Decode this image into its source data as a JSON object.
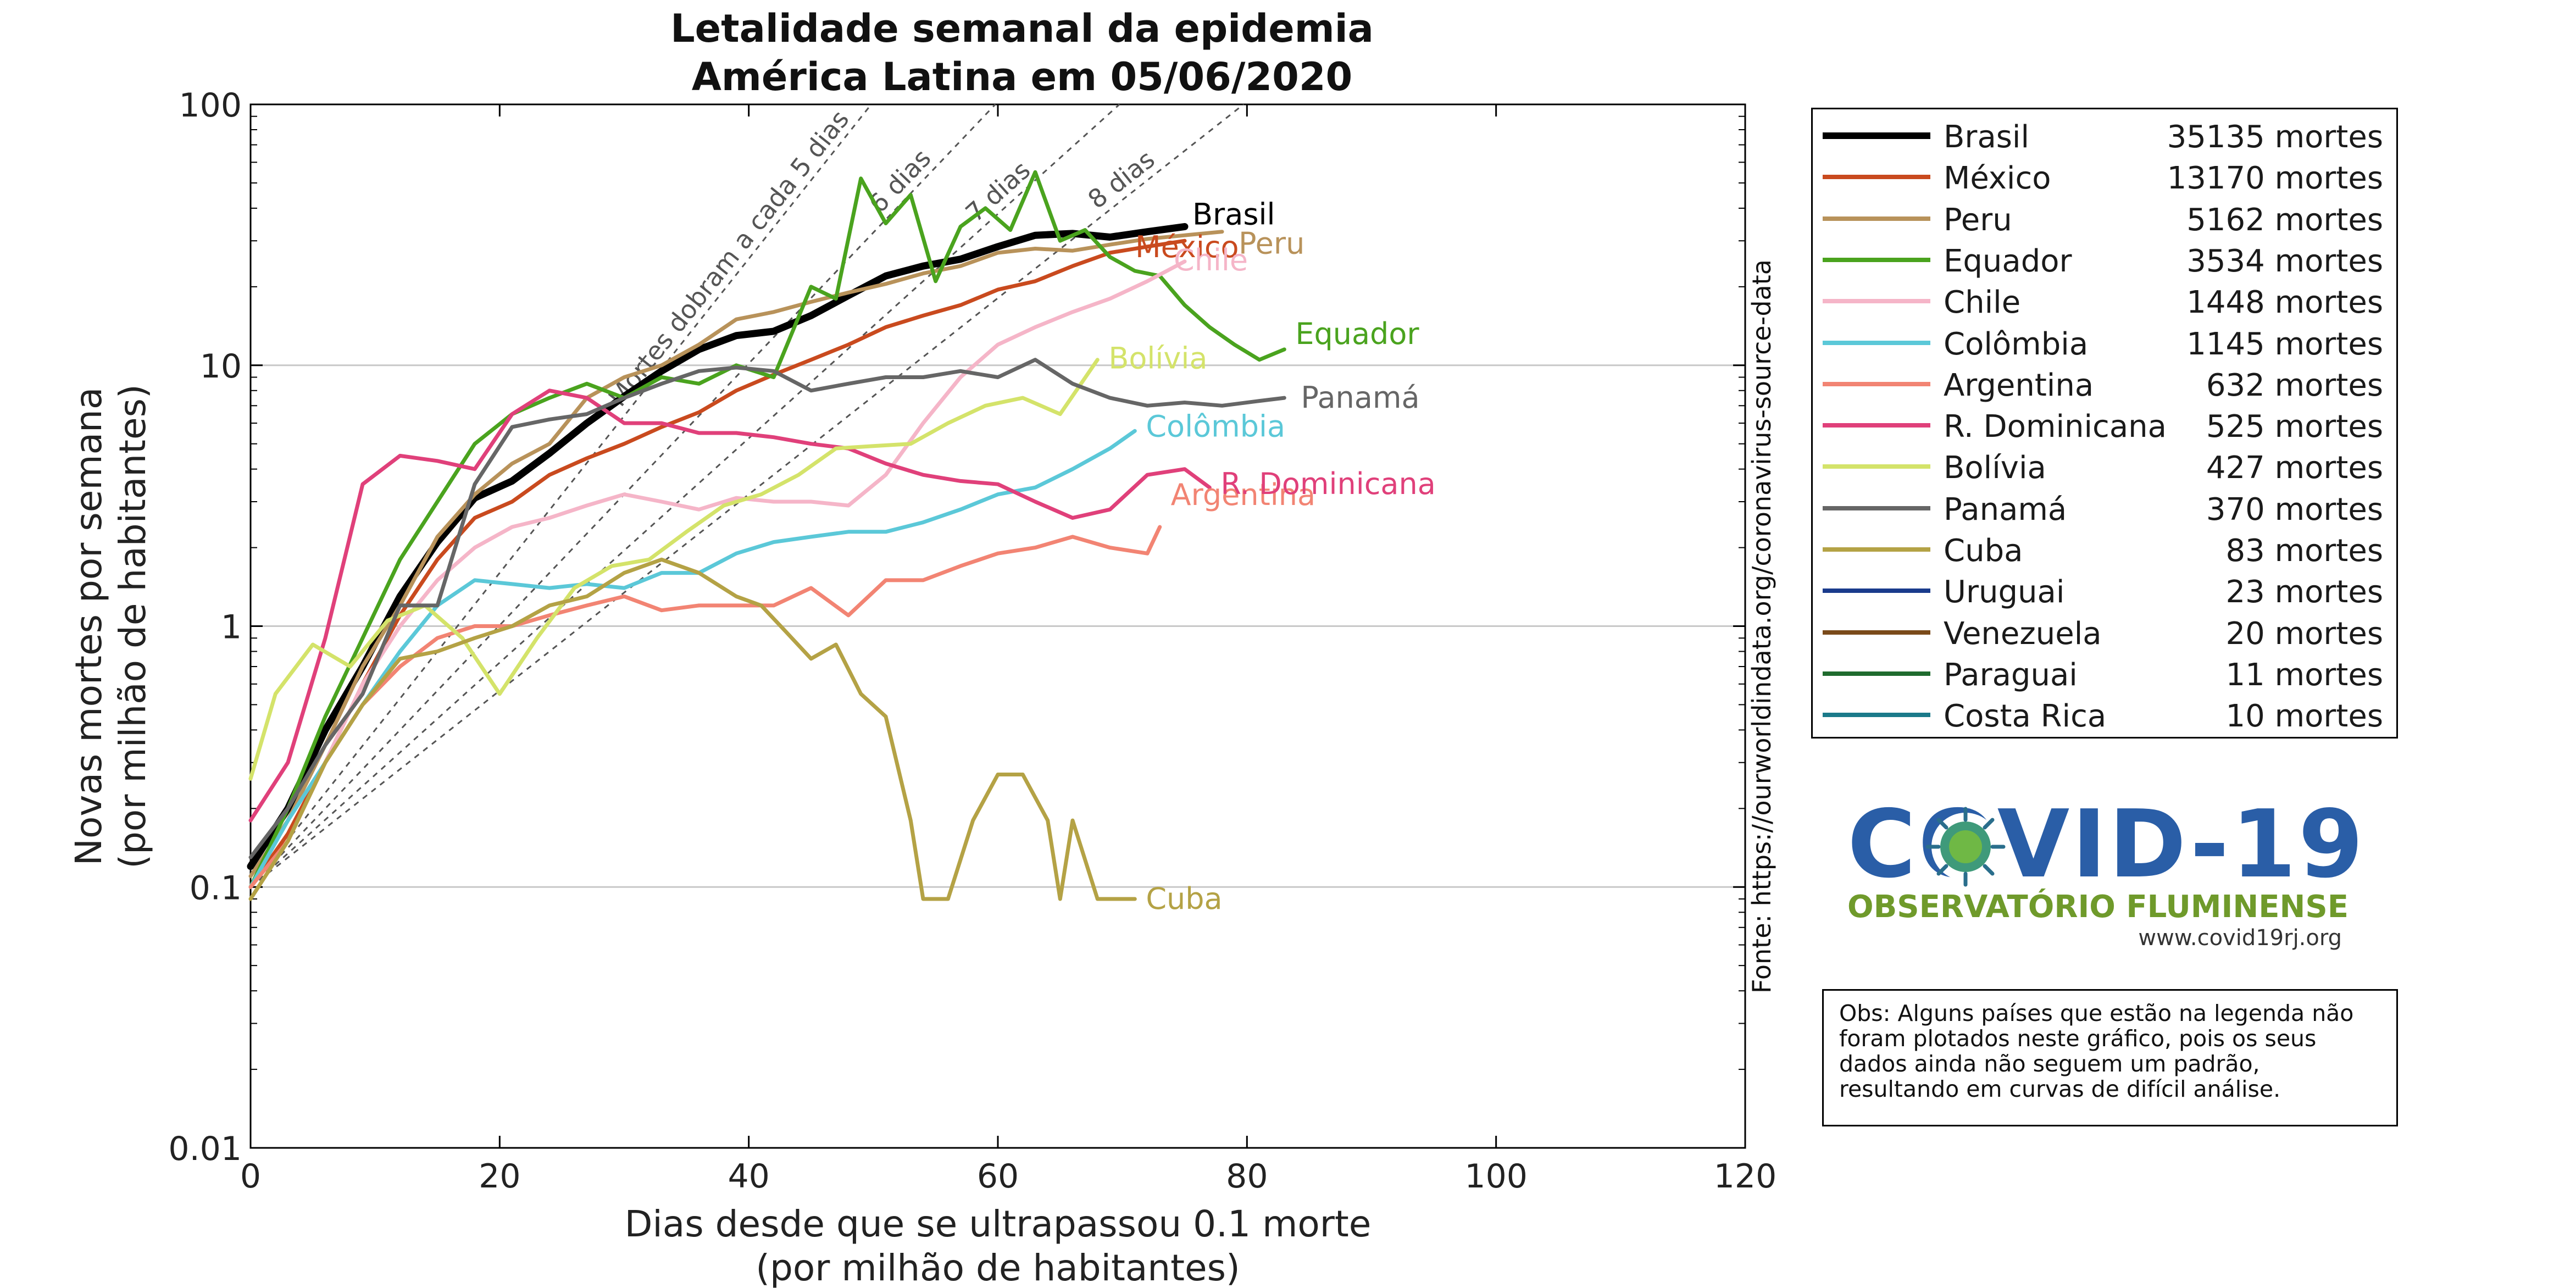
{
  "chart_data": {
    "type": "line",
    "title_line1": "Letalidade semanal da epidemia",
    "title_line2": "América Latina em 05/06/2020",
    "xlabel_line1": "Dias desde que se ultrapassou 0.1 morte",
    "xlabel_line2": "(por milhão de habitantes)",
    "ylabel_line1": "Novas mortes por semana",
    "ylabel_line2": "(por milhão de habitantes)",
    "source": "Fonte: https://ourworldindata.org/coronavirus-source-data",
    "xlim": [
      0,
      120
    ],
    "ylim": [
      0.01,
      100
    ],
    "yscale": "log",
    "grid": "horizontal",
    "legend_placement": "outside-right",
    "x_ticks": [
      "0",
      "20",
      "40",
      "60",
      "80",
      "100",
      "120"
    ],
    "y_ticks": [
      "0.01",
      "0.1",
      "1",
      "10",
      "100"
    ],
    "doubling_lines": [
      {
        "days": 5,
        "label": "Mortes dobram a cada 5 dias"
      },
      {
        "days": 6,
        "label": "6 dias"
      },
      {
        "days": 7,
        "label": "7 dias"
      },
      {
        "days": 8,
        "label": "8 dias"
      }
    ],
    "series": [
      {
        "name": "Brasil",
        "deaths": "35135 mortes",
        "color": "#000000",
        "end_label": "Brasil",
        "x": [
          0,
          3,
          6,
          9,
          12,
          15,
          18,
          21,
          24,
          27,
          30,
          33,
          36,
          39,
          42,
          45,
          48,
          51,
          54,
          57,
          60,
          63,
          66,
          69,
          72,
          75
        ],
        "y": [
          0.12,
          0.2,
          0.4,
          0.7,
          1.3,
          2.1,
          3.1,
          3.6,
          4.6,
          6.0,
          7.6,
          9.5,
          11.5,
          13.0,
          13.5,
          15.5,
          18.5,
          22.0,
          24.0,
          25.5,
          28.5,
          31.5,
          32.0,
          31.0,
          32.5,
          34.0
        ]
      },
      {
        "name": "México",
        "deaths": "13170 mortes",
        "color": "#c94a1e",
        "end_label": "México",
        "x": [
          0,
          3,
          6,
          9,
          12,
          15,
          18,
          21,
          24,
          27,
          30,
          33,
          36,
          39,
          42,
          45,
          48,
          51,
          54,
          57,
          60,
          63,
          66,
          69,
          72,
          75
        ],
        "y": [
          0.1,
          0.16,
          0.3,
          0.6,
          1.1,
          1.8,
          2.6,
          3.0,
          3.8,
          4.4,
          5.0,
          5.8,
          6.6,
          8.0,
          9.2,
          10.5,
          12.0,
          14.0,
          15.5,
          17.0,
          19.5,
          21.0,
          24.0,
          27.0,
          28.5,
          30.0
        ]
      },
      {
        "name": "Peru",
        "deaths": "5162 mortes",
        "color": "#b8925a",
        "end_label": "Peru",
        "x": [
          0,
          3,
          6,
          9,
          12,
          15,
          18,
          21,
          24,
          27,
          30,
          33,
          36,
          39,
          42,
          45,
          48,
          51,
          54,
          57,
          60,
          63,
          66,
          69,
          72,
          75,
          78
        ],
        "y": [
          0.11,
          0.18,
          0.35,
          0.7,
          1.2,
          2.2,
          3.2,
          4.2,
          5.0,
          7.5,
          9.0,
          10.0,
          12.0,
          15.0,
          16.0,
          17.5,
          19.0,
          20.5,
          22.5,
          24.0,
          27.0,
          28.0,
          27.5,
          29.0,
          30.5,
          31.5,
          32.5
        ]
      },
      {
        "name": "Equador",
        "deaths": "3534 mortes",
        "color": "#4aa31e",
        "end_label": "Equador",
        "x": [
          0,
          3,
          6,
          9,
          12,
          15,
          18,
          21,
          24,
          27,
          30,
          33,
          36,
          39,
          42,
          45,
          47,
          49,
          51,
          53,
          55,
          57,
          59,
          61,
          63,
          65,
          67,
          69,
          71,
          73,
          75,
          77,
          79,
          81,
          83
        ],
        "y": [
          0.1,
          0.2,
          0.45,
          0.9,
          1.8,
          3.0,
          5.0,
          6.5,
          7.5,
          8.5,
          7.5,
          9.0,
          8.5,
          10.0,
          9.0,
          20.0,
          18.0,
          52.0,
          35.0,
          45.0,
          21.0,
          34.0,
          40.0,
          33.0,
          55.0,
          30.0,
          33.0,
          26.0,
          23.0,
          22.0,
          17.0,
          14.0,
          12.0,
          10.5,
          11.5
        ]
      },
      {
        "name": "Chile",
        "deaths": "1448 mortes",
        "color": "#f5b5c8",
        "end_label": "Chile",
        "x": [
          0,
          3,
          6,
          9,
          12,
          15,
          18,
          21,
          24,
          27,
          30,
          33,
          36,
          39,
          42,
          45,
          48,
          51,
          54,
          57,
          60,
          63,
          66,
          69,
          72,
          75
        ],
        "y": [
          0.1,
          0.15,
          0.3,
          0.6,
          1.0,
          1.5,
          2.0,
          2.4,
          2.6,
          2.9,
          3.2,
          3.0,
          2.8,
          3.1,
          3.0,
          3.0,
          2.9,
          3.8,
          6.0,
          9.0,
          12.0,
          14.0,
          16.0,
          18.0,
          21.0,
          25.0
        ]
      },
      {
        "name": "Colômbia",
        "deaths": "1145 mortes",
        "color": "#5bc8d8",
        "end_label": "Colômbia",
        "x": [
          0,
          3,
          6,
          9,
          12,
          15,
          18,
          21,
          24,
          27,
          30,
          33,
          36,
          39,
          42,
          45,
          48,
          51,
          54,
          57,
          60,
          63,
          66,
          69,
          71
        ],
        "y": [
          0.1,
          0.18,
          0.3,
          0.5,
          0.8,
          1.2,
          1.5,
          1.45,
          1.4,
          1.45,
          1.4,
          1.6,
          1.6,
          1.9,
          2.1,
          2.2,
          2.3,
          2.3,
          2.5,
          2.8,
          3.2,
          3.4,
          4.0,
          4.8,
          5.6
        ]
      },
      {
        "name": "Argentina",
        "deaths": "632 mortes",
        "color": "#f28473",
        "end_label": "Argentina",
        "x": [
          0,
          3,
          6,
          9,
          12,
          15,
          18,
          21,
          24,
          27,
          30,
          33,
          36,
          39,
          42,
          45,
          48,
          51,
          54,
          57,
          60,
          63,
          66,
          69,
          72,
          73
        ],
        "y": [
          0.1,
          0.15,
          0.3,
          0.5,
          0.7,
          0.9,
          1.0,
          1.0,
          1.1,
          1.2,
          1.3,
          1.15,
          1.2,
          1.2,
          1.2,
          1.4,
          1.1,
          1.5,
          1.5,
          1.7,
          1.9,
          2.0,
          2.2,
          2.0,
          1.9,
          2.4
        ]
      },
      {
        "name": "R. Dominicana",
        "deaths": "525 mortes",
        "color": "#e0407a",
        "end_label": "R. Dominicana",
        "x": [
          0,
          3,
          6,
          9,
          12,
          15,
          18,
          21,
          24,
          27,
          30,
          33,
          36,
          39,
          42,
          45,
          48,
          51,
          54,
          57,
          60,
          63,
          66,
          69,
          72,
          75,
          77
        ],
        "y": [
          0.18,
          0.3,
          0.9,
          3.5,
          4.5,
          4.3,
          4.0,
          6.5,
          8.0,
          7.5,
          6.0,
          6.0,
          5.5,
          5.5,
          5.3,
          5.0,
          4.8,
          4.2,
          3.8,
          3.6,
          3.5,
          3.0,
          2.6,
          2.8,
          3.8,
          4.0,
          3.4
        ]
      },
      {
        "name": "Bolívia",
        "deaths": "427 mortes",
        "color": "#d4e36a",
        "end_label": "Bolívia",
        "x": [
          0,
          2,
          5,
          8,
          11,
          14,
          17,
          20,
          23,
          26,
          29,
          32,
          35,
          38,
          41,
          44,
          47,
          50,
          53,
          56,
          59,
          62,
          65,
          68
        ],
        "y": [
          0.26,
          0.55,
          0.85,
          0.7,
          1.05,
          1.2,
          0.9,
          0.55,
          0.9,
          1.4,
          1.7,
          1.8,
          2.3,
          2.9,
          3.2,
          3.8,
          4.8,
          4.9,
          5.0,
          6.0,
          7.0,
          7.5,
          6.5,
          10.5
        ]
      },
      {
        "name": "Panamá",
        "deaths": "370 mortes",
        "color": "#666666",
        "end_label": "Panamá",
        "x": [
          0,
          3,
          6,
          9,
          12,
          15,
          18,
          21,
          24,
          27,
          30,
          33,
          36,
          39,
          42,
          45,
          48,
          51,
          54,
          57,
          60,
          63,
          66,
          69,
          72,
          75,
          78,
          81,
          83
        ],
        "y": [
          0.13,
          0.2,
          0.35,
          0.55,
          1.2,
          1.2,
          3.5,
          5.8,
          6.2,
          6.5,
          7.5,
          8.5,
          9.5,
          9.8,
          9.5,
          8.0,
          8.5,
          9.0,
          9.0,
          9.5,
          9.0,
          10.5,
          8.5,
          7.5,
          7.0,
          7.2,
          7.0,
          7.3,
          7.5
        ]
      },
      {
        "name": "Cuba",
        "deaths": "83 mortes",
        "color": "#b4a245",
        "end_label": "Cuba",
        "x": [
          0,
          3,
          6,
          9,
          12,
          15,
          18,
          21,
          24,
          27,
          30,
          33,
          36,
          39,
          41,
          43,
          45,
          47,
          49,
          51,
          53,
          54,
          56,
          58,
          60,
          62,
          64,
          65,
          66,
          68,
          71
        ],
        "y": [
          0.09,
          0.15,
          0.3,
          0.5,
          0.75,
          0.8,
          0.9,
          1.0,
          1.2,
          1.3,
          1.6,
          1.8,
          1.6,
          1.3,
          1.2,
          0.95,
          0.75,
          0.85,
          0.55,
          0.45,
          0.18,
          0.09,
          0.09,
          0.18,
          0.27,
          0.27,
          0.18,
          0.09,
          0.18,
          0.09,
          0.09
        ]
      },
      {
        "name": "Uruguai",
        "deaths": "23 mortes",
        "color": "#1a3b8c",
        "end_label": "",
        "x": [],
        "y": []
      },
      {
        "name": "Venezuela",
        "deaths": "20 mortes",
        "color": "#7a4a1a",
        "end_label": "",
        "x": [],
        "y": []
      },
      {
        "name": "Paraguai",
        "deaths": "11 mortes",
        "color": "#1f6b2e",
        "end_label": "",
        "x": [],
        "y": []
      },
      {
        "name": "Costa Rica",
        "deaths": "10 mortes",
        "color": "#1b7a8a",
        "end_label": "",
        "x": [],
        "y": []
      }
    ]
  },
  "logo": {
    "word": "COVID-19",
    "subtitle": "OBSERVATÓRIO FLUMINENSE",
    "url": "www.covid19rj.org"
  },
  "note": "Obs: Alguns países que estão na legenda não foram plotados neste gráfico, pois os seus dados ainda não seguem um padrão, resultando em curvas de difícil análise."
}
